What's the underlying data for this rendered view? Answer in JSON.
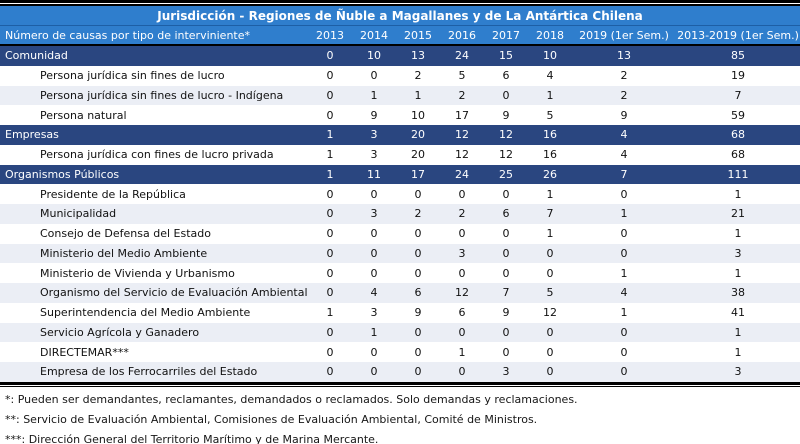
{
  "colors": {
    "header_blue": "#2F7ECD",
    "section_navy": "#2A4680",
    "shaded_row": "#EBEEF5",
    "rule_black": "#000000",
    "header_text": "#FFFFFF"
  },
  "chart_data": {
    "type": "table",
    "title": "Jurisdicción - Regiones de Ñuble a Magallanes y de La Antártica Chilena",
    "row_header": "Número de causas por tipo de interviniente*",
    "columns": [
      "2013",
      "2014",
      "2015",
      "2016",
      "2017",
      "2018",
      "2019 (1er Sem.)",
      "2013-2019 (1er Sem.)"
    ],
    "rows": [
      {
        "label": "Comunidad",
        "level": "section",
        "shaded": false,
        "values": [
          0,
          10,
          13,
          24,
          15,
          10,
          13,
          85
        ]
      },
      {
        "label": "Persona jurídica sin fines de lucro",
        "level": "item",
        "shaded": false,
        "values": [
          0,
          0,
          2,
          5,
          6,
          4,
          2,
          19
        ]
      },
      {
        "label": "Persona jurídica sin fines de lucro - Indígena",
        "level": "item",
        "shaded": true,
        "values": [
          0,
          1,
          1,
          2,
          0,
          1,
          2,
          7
        ]
      },
      {
        "label": "Persona natural",
        "level": "item",
        "shaded": false,
        "values": [
          0,
          9,
          10,
          17,
          9,
          5,
          9,
          59
        ]
      },
      {
        "label": "Empresas",
        "level": "section",
        "shaded": false,
        "values": [
          1,
          3,
          20,
          12,
          12,
          16,
          4,
          68
        ]
      },
      {
        "label": "Persona jurídica con fines de lucro privada",
        "level": "item",
        "shaded": false,
        "values": [
          1,
          3,
          20,
          12,
          12,
          16,
          4,
          68
        ]
      },
      {
        "label": "Organismos Públicos",
        "level": "section",
        "shaded": false,
        "values": [
          1,
          11,
          17,
          24,
          25,
          26,
          7,
          111
        ]
      },
      {
        "label": "Presidente de la República",
        "level": "item",
        "shaded": false,
        "values": [
          0,
          0,
          0,
          0,
          0,
          1,
          0,
          1
        ]
      },
      {
        "label": "Municipalidad",
        "level": "item",
        "shaded": true,
        "values": [
          0,
          3,
          2,
          2,
          6,
          7,
          1,
          21
        ]
      },
      {
        "label": "Consejo de Defensa del Estado",
        "level": "item",
        "shaded": false,
        "values": [
          0,
          0,
          0,
          0,
          0,
          1,
          0,
          1
        ]
      },
      {
        "label": "Ministerio del Medio Ambiente",
        "level": "item",
        "shaded": true,
        "values": [
          0,
          0,
          0,
          3,
          0,
          0,
          0,
          3
        ]
      },
      {
        "label": "Ministerio de Vivienda y Urbanismo",
        "level": "item",
        "shaded": false,
        "values": [
          0,
          0,
          0,
          0,
          0,
          0,
          1,
          1
        ]
      },
      {
        "label": "Organismo del Servicio de Evaluación Ambiental",
        "level": "item",
        "shaded": true,
        "values": [
          0,
          4,
          6,
          12,
          7,
          5,
          4,
          38
        ]
      },
      {
        "label": "Superintendencia del Medio Ambiente",
        "level": "item",
        "shaded": false,
        "values": [
          1,
          3,
          9,
          6,
          9,
          12,
          1,
          41
        ]
      },
      {
        "label": "Servicio Agrícola y Ganadero",
        "level": "item",
        "shaded": true,
        "values": [
          0,
          1,
          0,
          0,
          0,
          0,
          0,
          1
        ]
      },
      {
        "label": "DIRECTEMAR***",
        "level": "item",
        "shaded": false,
        "values": [
          0,
          0,
          0,
          1,
          0,
          0,
          0,
          1
        ]
      },
      {
        "label": "Empresa de los Ferrocarriles del Estado",
        "level": "item",
        "shaded": true,
        "values": [
          0,
          0,
          0,
          0,
          3,
          0,
          0,
          3
        ]
      }
    ],
    "footnotes": [
      "*: Pueden ser demandantes, reclamantes, demandados o reclamados. Solo demandas y reclamaciones.",
      "**: Servicio de Evaluación Ambiental, Comisiones de Evaluación Ambiental, Comité de Ministros.",
      "***: Dirección General del Territorio Marítimo y de Marina Mercante."
    ]
  }
}
